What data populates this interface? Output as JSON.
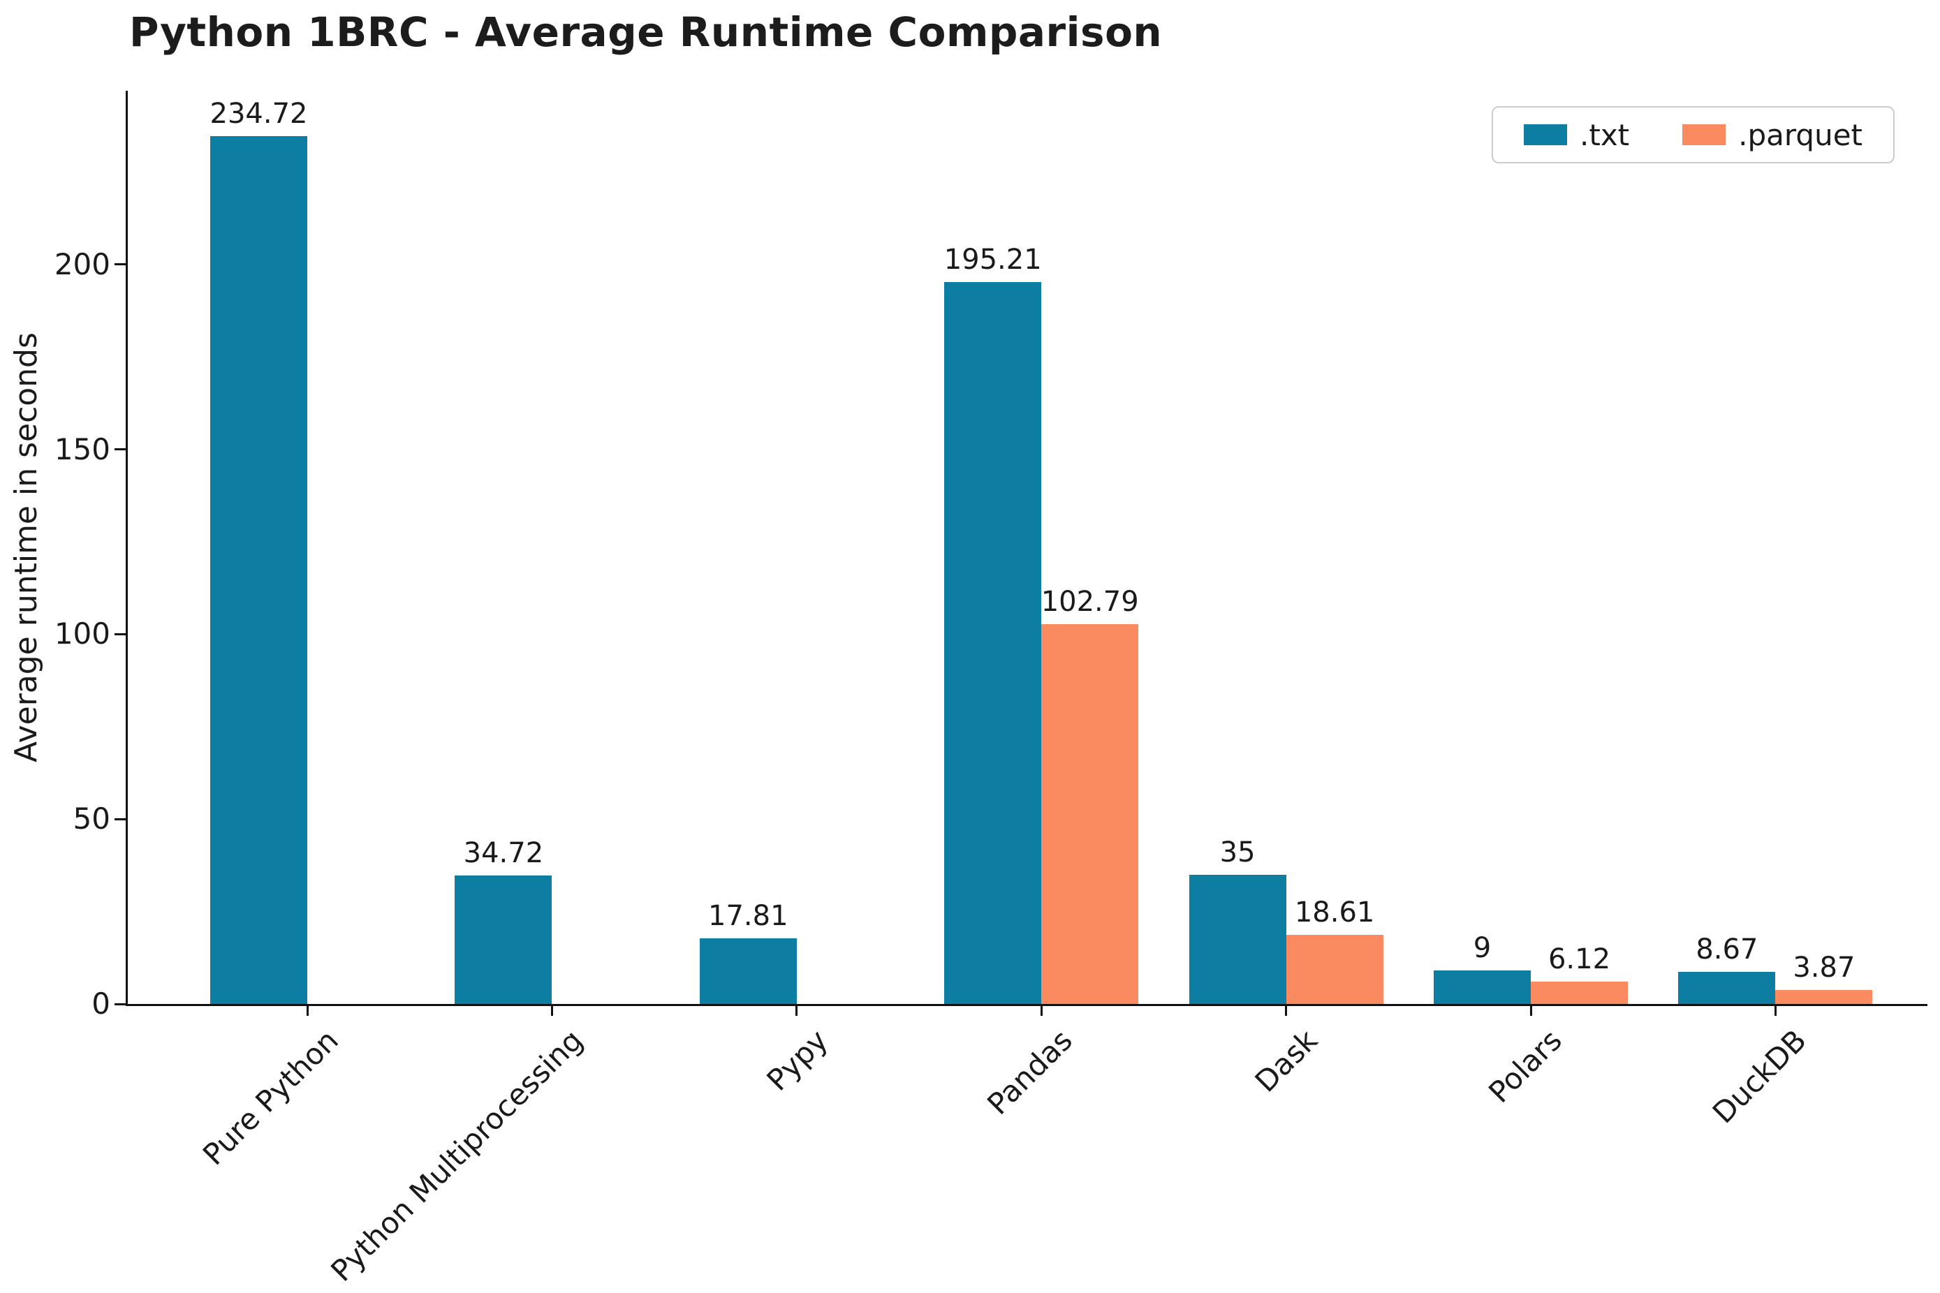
{
  "chart_data": {
    "type": "bar",
    "title": "Python 1BRC - Average Runtime Comparison",
    "xlabel": "",
    "ylabel": "Average runtime in seconds",
    "categories": [
      "Pure Python",
      "Python Multiprocessing",
      "Pypy",
      "Pandas",
      "Dask",
      "Polars",
      "DuckDB"
    ],
    "series": [
      {
        "name": ".txt",
        "color": "#0d7ea1",
        "values": [
          234.72,
          34.72,
          17.81,
          195.21,
          35,
          9,
          8.67
        ],
        "labels": [
          "234.72",
          "34.72",
          "17.81",
          "195.21",
          "35",
          "9",
          "8.67"
        ]
      },
      {
        "name": ".parquet",
        "color": "#fa8b60",
        "values": [
          null,
          null,
          null,
          102.79,
          18.61,
          6.12,
          3.87
        ],
        "labels": [
          null,
          null,
          null,
          "102.79",
          "18.61",
          "6.12",
          "3.87"
        ]
      }
    ],
    "y_ticks": [
      0,
      50,
      100,
      150,
      200
    ],
    "ylim": [
      0,
      247
    ],
    "grid": false,
    "legend_position": "top-right",
    "colors": {
      "txt": "#0d7ea1",
      "parquet": "#fa8b60",
      "axis": "#111111",
      "text": "#1a1a1a"
    }
  }
}
